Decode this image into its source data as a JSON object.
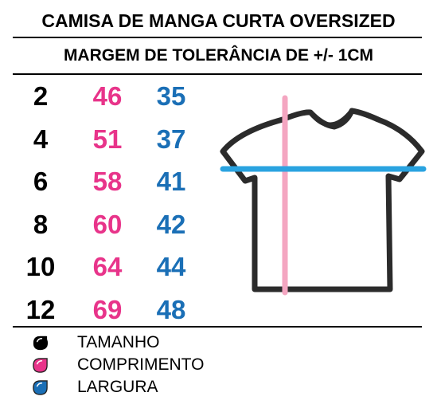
{
  "header": {
    "title": "CAMISA DE MANGA CURTA OVERSIZED",
    "subtitle": "MARGEM DE TOLERÂNCIA DE +/- 1CM"
  },
  "colors": {
    "size": "#000000",
    "length": "#e8348a",
    "width": "#1a6fb6",
    "length_line": "#f4a6c1",
    "width_line": "#2aa3e0",
    "shirt_outline": "#2b2b2b"
  },
  "size_table": [
    {
      "size": "2",
      "length": "46",
      "width": "35"
    },
    {
      "size": "4",
      "length": "51",
      "width": "37"
    },
    {
      "size": "6",
      "length": "58",
      "width": "41"
    },
    {
      "size": "8",
      "length": "60",
      "width": "42"
    },
    {
      "size": "10",
      "length": "64",
      "width": "44"
    },
    {
      "size": "12",
      "length": "69",
      "width": "48"
    }
  ],
  "legend": [
    {
      "label": "TAMANHO",
      "icon": "black-drop-icon"
    },
    {
      "label": "COMPRIMENTO",
      "icon": "pink-drop-icon"
    },
    {
      "label": "LARGURA",
      "icon": "blue-drop-icon"
    }
  ]
}
